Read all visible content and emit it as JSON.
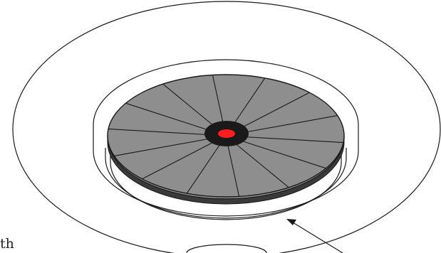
{
  "diagram": {
    "spokes": 14,
    "label": "th",
    "colors": {
      "stroke": "#1a1a1a",
      "disc_fill": "#8e8e8e",
      "hub_fill": "#1a1a1a",
      "center_marker": "#ff1e1e",
      "background": "#ffffff"
    }
  }
}
